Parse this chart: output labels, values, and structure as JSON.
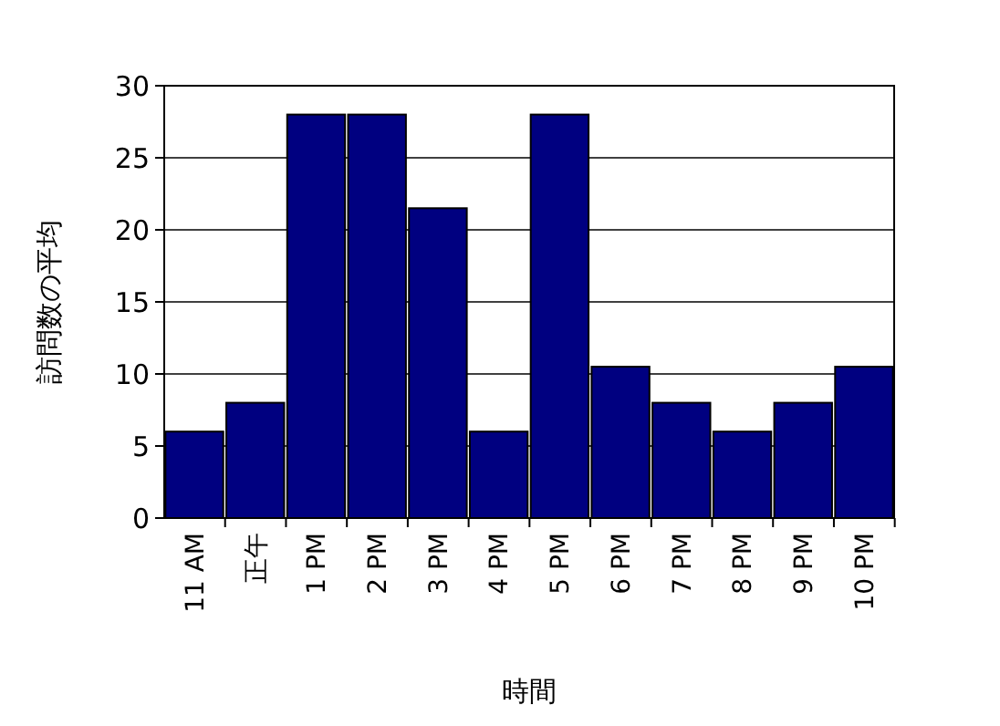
{
  "chart_data": {
    "type": "bar",
    "xlabel": "時間",
    "ylabel": "訪問数の平均",
    "categories": [
      "11 AM",
      "正午",
      "1 PM",
      "2 PM",
      "3 PM",
      "4 PM",
      "5 PM",
      "6 PM",
      "7 PM",
      "8 PM",
      "9 PM",
      "10 PM"
    ],
    "values": [
      6,
      8,
      28,
      28,
      21.5,
      6,
      28,
      10.5,
      8,
      6,
      8,
      10.5
    ],
    "color": "#000080",
    "ylim": [
      0,
      30
    ],
    "yticks": [
      0,
      5,
      10,
      15,
      20,
      25,
      30
    ],
    "grid": "y"
  }
}
